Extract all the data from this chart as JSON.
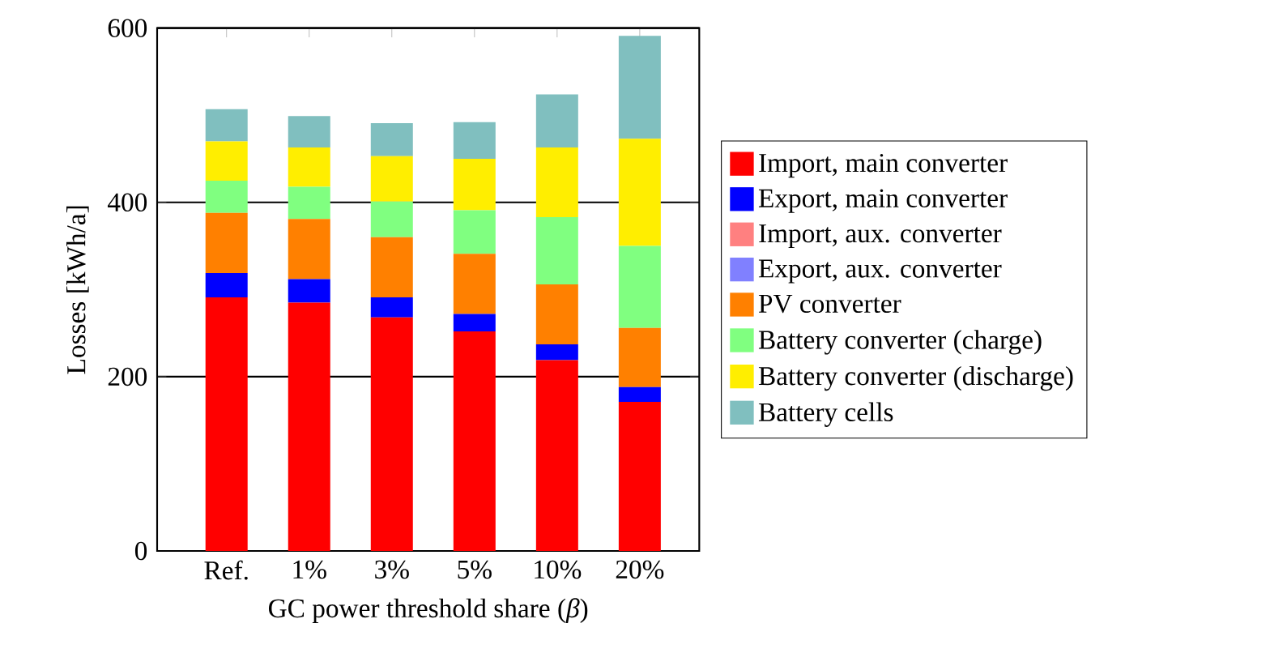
{
  "chart_data": {
    "type": "bar",
    "stacked": true,
    "xlabel": "GC power threshold share (*β*)",
    "ylabel": "Losses [kWh/a]",
    "categories": [
      "Ref.",
      "1%",
      "3%",
      "5%",
      "10%",
      "20%"
    ],
    "series": [
      {
        "name": "Import, main converter",
        "color": "#ff0000",
        "values": [
          291,
          285,
          268,
          252,
          219,
          171
        ]
      },
      {
        "name": "Export, main converter",
        "color": "#0000ff",
        "values": [
          28,
          27,
          23,
          20,
          18,
          17
        ]
      },
      {
        "name": "Import, aux. converter",
        "color": "#ff8080",
        "values": [
          0,
          0,
          0,
          0,
          0,
          0
        ]
      },
      {
        "name": "Export, aux. converter",
        "color": "#8080ff",
        "values": [
          0,
          0,
          0,
          0,
          0,
          0
        ]
      },
      {
        "name": "PV converter",
        "color": "#ff8000",
        "values": [
          69,
          69,
          69,
          69,
          69,
          68
        ]
      },
      {
        "name": "Battery converter (charge)",
        "color": "#80ff80",
        "values": [
          37,
          37,
          41,
          50,
          77,
          94
        ]
      },
      {
        "name": "Battery converter (discharge)",
        "color": "#ffee00",
        "values": [
          45,
          45,
          52,
          59,
          80,
          123
        ]
      },
      {
        "name": "Battery cells",
        "color": "#80bfbf",
        "values": [
          37,
          36,
          38,
          42,
          61,
          118
        ]
      }
    ],
    "ylim": [
      0,
      600
    ],
    "yticks": [
      0,
      200,
      400,
      600
    ],
    "grid": "y",
    "legend": "right"
  }
}
